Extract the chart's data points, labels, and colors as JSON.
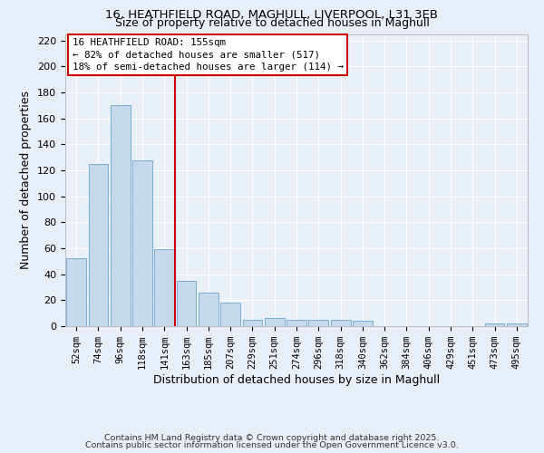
{
  "title_line1": "16, HEATHFIELD ROAD, MAGHULL, LIVERPOOL, L31 3EB",
  "title_line2": "Size of property relative to detached houses in Maghull",
  "xlabel": "Distribution of detached houses by size in Maghull",
  "ylabel": "Number of detached properties",
  "categories": [
    "52sqm",
    "74sqm",
    "96sqm",
    "118sqm",
    "141sqm",
    "163sqm",
    "185sqm",
    "207sqm",
    "229sqm",
    "251sqm",
    "274sqm",
    "296sqm",
    "318sqm",
    "340sqm",
    "362sqm",
    "384sqm",
    "406sqm",
    "429sqm",
    "451sqm",
    "473sqm",
    "495sqm"
  ],
  "values": [
    52,
    125,
    170,
    128,
    59,
    35,
    26,
    18,
    5,
    6,
    5,
    5,
    5,
    4,
    0,
    0,
    0,
    0,
    0,
    2,
    2
  ],
  "bar_color": "#c6d9ec",
  "bar_edge_color": "#7aadd4",
  "vline_x": 4.5,
  "vline_color": "#cc0000",
  "annotation_title": "16 HEATHFIELD ROAD: 155sqm",
  "annotation_line2": "← 82% of detached houses are smaller (517)",
  "annotation_line3": "18% of semi-detached houses are larger (114) →",
  "annotation_box_color": "#cc0000",
  "ylim": [
    0,
    225
  ],
  "yticks": [
    0,
    20,
    40,
    60,
    80,
    100,
    120,
    140,
    160,
    180,
    200,
    220
  ],
  "footer_line1": "Contains HM Land Registry data © Crown copyright and database right 2025.",
  "footer_line2": "Contains public sector information licensed under the Open Government Licence v3.0.",
  "background_color": "#e8eef7",
  "plot_bg_color": "#eaf0f8"
}
